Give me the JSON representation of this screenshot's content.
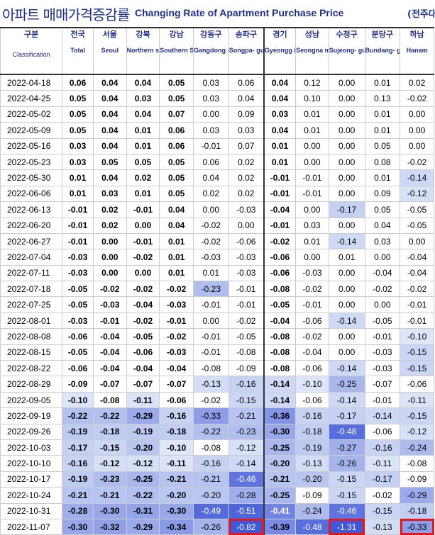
{
  "header": {
    "title_ko": "아파트 매매가격증감률",
    "title_en": "Changing Rate of Apartment Purchase Price",
    "unit": "(전주대"
  },
  "columns": [
    {
      "ko": "구분",
      "en": "Classification"
    },
    {
      "ko": "전국",
      "en": "Total"
    },
    {
      "ko": "서울",
      "en": "Seoul"
    },
    {
      "ko": "강북",
      "en": "Northern seoul"
    },
    {
      "ko": "강남",
      "en": "Southern Seoul"
    },
    {
      "ko": "강동구",
      "en": "Gangdong -gu"
    },
    {
      "ko": "송파구",
      "en": "Songpa- gu"
    },
    {
      "ko": "경기",
      "en": "Gyeongg i-do"
    },
    {
      "ko": "성남",
      "en": "Seongna m"
    },
    {
      "ko": "수정구",
      "en": "Sujeong- gu"
    },
    {
      "ko": "분당구",
      "en": "Bundang- gu"
    },
    {
      "ko": "하남",
      "en": "Hanam"
    }
  ],
  "rows": [
    {
      "date": "2022-04-18",
      "v": [
        "0.06",
        "0.04",
        "0.04",
        "0.05",
        "0.03",
        "0.06",
        "0.04",
        "0.12",
        "0.00",
        "0.01",
        "0.02"
      ]
    },
    {
      "date": "2022-04-25",
      "v": [
        "0.05",
        "0.04",
        "0.03",
        "0.05",
        "0.03",
        "0.04",
        "0.04",
        "0.10",
        "0.00",
        "0.13",
        "-0.02"
      ]
    },
    {
      "date": "2022-05-02",
      "v": [
        "0.05",
        "0.04",
        "0.04",
        "0.07",
        "0.00",
        "0.09",
        "0.03",
        "0.01",
        "0.00",
        "0.01",
        "0.00"
      ]
    },
    {
      "date": "2022-05-09",
      "v": [
        "0.05",
        "0.04",
        "0.01",
        "0.06",
        "0.03",
        "0.03",
        "0.04",
        "0.01",
        "0.00",
        "0.01",
        "0.00"
      ]
    },
    {
      "date": "2022-05-16",
      "v": [
        "0.03",
        "0.04",
        "0.01",
        "0.06",
        "-0.01",
        "0.07",
        "0.01",
        "0.00",
        "0.00",
        "0.05",
        "0.00"
      ]
    },
    {
      "date": "2022-05-23",
      "v": [
        "0.03",
        "0.05",
        "0.05",
        "0.05",
        "0.06",
        "0.02",
        "0.01",
        "0.00",
        "0.00",
        "0.08",
        "-0.02"
      ]
    },
    {
      "date": "2022-05-30",
      "v": [
        "0.01",
        "0.04",
        "0.02",
        "0.05",
        "0.04",
        "0.02",
        "-0.01",
        "-0.01",
        "0.00",
        "0.01",
        "-0.14"
      ]
    },
    {
      "date": "2022-06-06",
      "v": [
        "0.01",
        "0.03",
        "0.01",
        "0.05",
        "0.02",
        "0.02",
        "-0.01",
        "-0.01",
        "0.00",
        "0.09",
        "-0.12"
      ]
    },
    {
      "date": "2022-06-13",
      "v": [
        "-0.01",
        "0.02",
        "-0.01",
        "0.04",
        "0.00",
        "-0.03",
        "-0.04",
        "0.00",
        "-0.17",
        "0.05",
        "-0.05"
      ]
    },
    {
      "date": "2022-06-20",
      "v": [
        "-0.01",
        "0.02",
        "0.00",
        "0.04",
        "-0.02",
        "0.00",
        "-0.01",
        "0.03",
        "0.00",
        "0.04",
        "-0.05"
      ]
    },
    {
      "date": "2022-06-27",
      "v": [
        "-0.01",
        "0.00",
        "-0.01",
        "0.01",
        "-0.02",
        "-0.06",
        "-0.02",
        "0.01",
        "-0.14",
        "0.03",
        "0.00"
      ]
    },
    {
      "date": "2022-07-04",
      "v": [
        "-0.03",
        "0.00",
        "-0.02",
        "0.01",
        "-0.03",
        "-0.03",
        "-0.06",
        "0.00",
        "0.01",
        "0.00",
        "-0.04"
      ]
    },
    {
      "date": "2022-07-11",
      "v": [
        "-0.03",
        "0.00",
        "0.00",
        "0.01",
        "0.01",
        "-0.03",
        "-0.06",
        "-0.03",
        "0.00",
        "-0.04",
        "-0.04"
      ]
    },
    {
      "date": "2022-07-18",
      "v": [
        "-0.05",
        "-0.02",
        "-0.02",
        "-0.02",
        "-0.23",
        "-0.01",
        "-0.08",
        "-0.02",
        "0.00",
        "-0.02",
        "-0.02"
      ]
    },
    {
      "date": "2022-07-25",
      "v": [
        "-0.05",
        "-0.03",
        "-0.04",
        "-0.03",
        "-0.01",
        "-0.01",
        "-0.05",
        "-0.01",
        "0.00",
        "0.00",
        "-0.01"
      ]
    },
    {
      "date": "2022-08-01",
      "v": [
        "-0.03",
        "-0.01",
        "-0.02",
        "-0.01",
        "0.00",
        "-0.02",
        "-0.04",
        "-0.06",
        "-0.14",
        "-0.05",
        "-0.01"
      ]
    },
    {
      "date": "2022-08-08",
      "v": [
        "-0.06",
        "-0.04",
        "-0.05",
        "-0.02",
        "-0.01",
        "-0.05",
        "-0.08",
        "-0.02",
        "0.00",
        "-0.01",
        "-0.10"
      ]
    },
    {
      "date": "2022-08-15",
      "v": [
        "-0.05",
        "-0.04",
        "-0.06",
        "-0.03",
        "-0.01",
        "-0.08",
        "-0.08",
        "-0.04",
        "0.00",
        "-0.03",
        "-0.15"
      ]
    },
    {
      "date": "2022-08-22",
      "v": [
        "-0.06",
        "-0.04",
        "-0.04",
        "-0.04",
        "-0.08",
        "-0.09",
        "-0.08",
        "-0.06",
        "-0.14",
        "-0.03",
        "-0.15"
      ]
    },
    {
      "date": "2022-08-29",
      "v": [
        "-0.09",
        "-0.07",
        "-0.07",
        "-0.07",
        "-0.13",
        "-0.16",
        "-0.14",
        "-0.10",
        "-0.25",
        "-0.07",
        "-0.06"
      ]
    },
    {
      "date": "2022-09-05",
      "v": [
        "-0.10",
        "-0.08",
        "-0.11",
        "-0.06",
        "-0.02",
        "-0.15",
        "-0.14",
        "-0.06",
        "-0.14",
        "-0.01",
        "-0.11"
      ]
    },
    {
      "date": "2022-09-19",
      "v": [
        "-0.22",
        "-0.22",
        "-0.29",
        "-0.16",
        "-0.33",
        "-0.21",
        "-0.36",
        "-0.16",
        "-0.17",
        "-0.14",
        "-0.15"
      ]
    },
    {
      "date": "2022-09-26",
      "v": [
        "-0.19",
        "-0.18",
        "-0.19",
        "-0.18",
        "-0.22",
        "-0.23",
        "-0.30",
        "-0.18",
        "-0.48",
        "-0.06",
        "-0.12"
      ]
    },
    {
      "date": "2022-10-03",
      "v": [
        "-0.17",
        "-0.15",
        "-0.20",
        "-0.10",
        "-0.08",
        "-0.12",
        "-0.25",
        "-0.19",
        "-0.27",
        "-0.16",
        "-0.24"
      ]
    },
    {
      "date": "2022-10-10",
      "v": [
        "-0.16",
        "-0.12",
        "-0.12",
        "-0.11",
        "-0.16",
        "-0.14",
        "-0.20",
        "-0.13",
        "-0.26",
        "-0.11",
        "-0.08"
      ]
    },
    {
      "date": "2022-10-17",
      "v": [
        "-0.19",
        "-0.23",
        "-0.25",
        "-0.21",
        "-0.21",
        "-0.46",
        "-0.21",
        "-0.20",
        "-0.15",
        "-0.17",
        "-0.09"
      ]
    },
    {
      "date": "2022-10-24",
      "v": [
        "-0.21",
        "-0.21",
        "-0.22",
        "-0.20",
        "-0.20",
        "-0.28",
        "-0.25",
        "-0.09",
        "-0.15",
        "-0.02",
        "-0.29"
      ]
    },
    {
      "date": "2022-10-31",
      "v": [
        "-0.28",
        "-0.30",
        "-0.31",
        "-0.30",
        "-0.49",
        "-0.51",
        "-0.41",
        "-0.24",
        "-0.46",
        "-0.15",
        "-0.18"
      ]
    },
    {
      "date": "2022-11-07",
      "v": [
        "-0.30",
        "-0.32",
        "-0.29",
        "-0.34",
        "-0.26",
        "-0.82",
        "-0.39",
        "-0.48",
        "-1.31",
        "-0.13",
        "-0.33"
      ]
    }
  ],
  "highlighted_cells": [
    "2022-11-07 송파구",
    "2022-11-07 수정구",
    "2022-11-07 하남"
  ],
  "colors": {
    "title": "#1f2f8a",
    "highlight": "#e0191e",
    "scale_light": "#dde6f8",
    "scale_dark": "#4058d8"
  }
}
